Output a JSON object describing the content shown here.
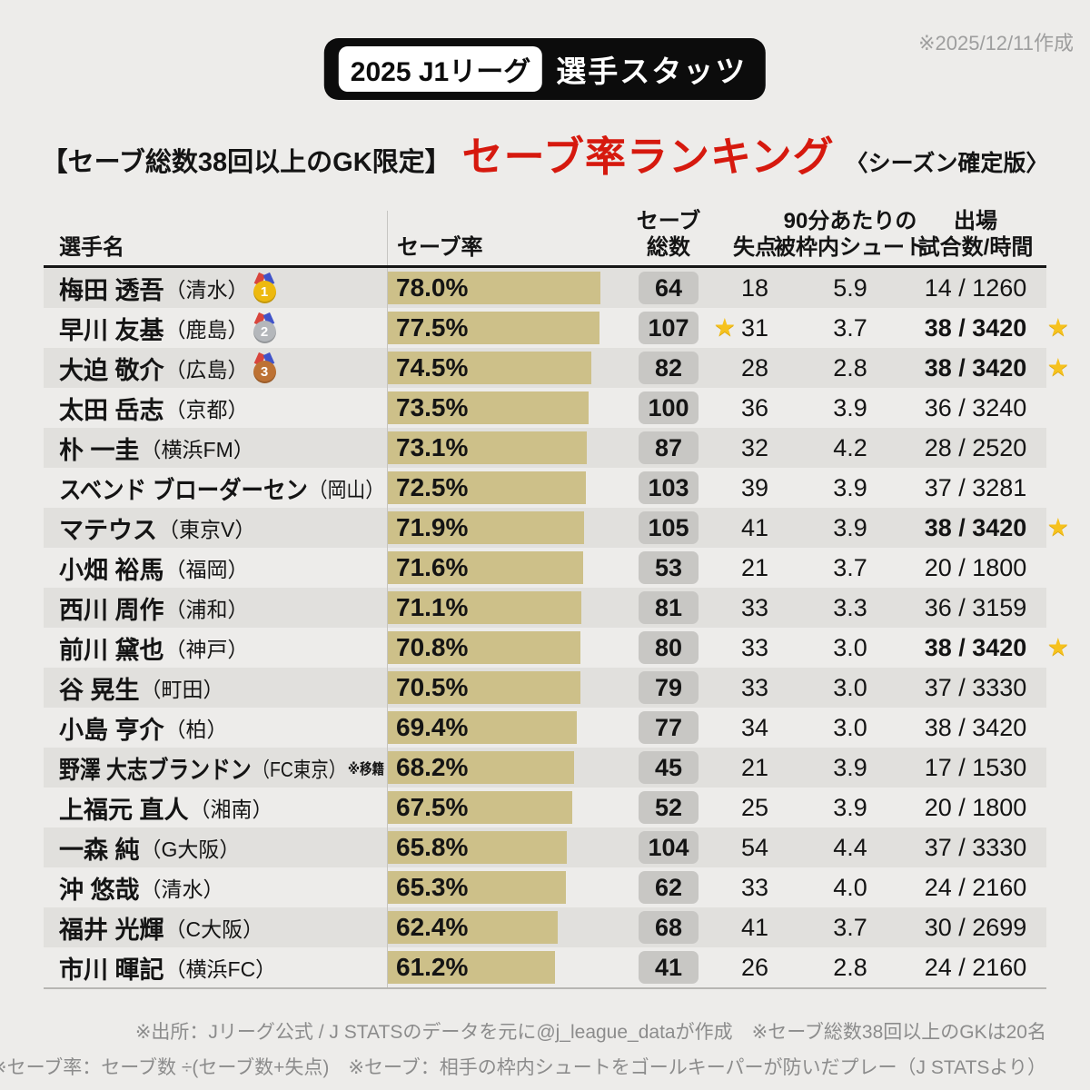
{
  "meta": {
    "created_note": "※2025/12/11作成"
  },
  "header": {
    "badge_league": "2025 J1リーグ",
    "badge_title": "選手スタッツ"
  },
  "subtitle": {
    "prefix": "【セーブ総数38回以上のGK限定】",
    "main": "セーブ率ランキング",
    "suffix": "〈シーズン確定版〉"
  },
  "colors": {
    "background": "#edecea",
    "row_alt": "#e1e0dd",
    "bar": "#cdc089",
    "saves_box": "#c8c7c4",
    "title_red": "#d6190e",
    "badge_black": "#0c0c0c",
    "footnote_gray": "#8c8c8c",
    "star_gold": "#f6c21e"
  },
  "icons": {
    "star": "★"
  },
  "medals": {
    "gold": "1",
    "silver": "2",
    "bronze": "3"
  },
  "table": {
    "headers": {
      "name": "選手名",
      "rate": "セーブ率",
      "saves_l1": "セーブ",
      "saves_l2": "総数",
      "conceded": "失点",
      "shots_l1": "90分あたりの",
      "shots_l2": "被枠内シュート",
      "apps_l1": "出場",
      "apps_l2": "試合数/時間"
    },
    "rows": [
      {
        "name": "梅田 透吾",
        "club": "（清水）",
        "medal": "gold",
        "note": "",
        "save_pct": 78.0,
        "save_pct_label": "78.0%",
        "saves": "64",
        "saves_star": false,
        "conceded": "18",
        "shots_per90": "5.9",
        "apps": "14 / 1260",
        "apps_bold": false,
        "apps_star": false
      },
      {
        "name": "早川 友基",
        "club": "（鹿島）",
        "medal": "silver",
        "note": "",
        "save_pct": 77.5,
        "save_pct_label": "77.5%",
        "saves": "107",
        "saves_star": true,
        "conceded": "31",
        "shots_per90": "3.7",
        "apps": "38 / 3420",
        "apps_bold": true,
        "apps_star": true
      },
      {
        "name": "大迫 敬介",
        "club": "（広島）",
        "medal": "bronze",
        "note": "",
        "save_pct": 74.5,
        "save_pct_label": "74.5%",
        "saves": "82",
        "saves_star": false,
        "conceded": "28",
        "shots_per90": "2.8",
        "apps": "38 / 3420",
        "apps_bold": true,
        "apps_star": true
      },
      {
        "name": "太田 岳志",
        "club": "（京都）",
        "medal": null,
        "note": "",
        "save_pct": 73.5,
        "save_pct_label": "73.5%",
        "saves": "100",
        "saves_star": false,
        "conceded": "36",
        "shots_per90": "3.9",
        "apps": "36 / 3240",
        "apps_bold": false,
        "apps_star": false
      },
      {
        "name": "朴 一圭",
        "club": "（横浜FM）",
        "medal": null,
        "note": "",
        "save_pct": 73.1,
        "save_pct_label": "73.1%",
        "saves": "87",
        "saves_star": false,
        "conceded": "32",
        "shots_per90": "4.2",
        "apps": "28 / 2520",
        "apps_bold": false,
        "apps_star": false
      },
      {
        "name": "スベンド ブローダーセン",
        "club": "（岡山）",
        "medal": null,
        "note": "",
        "save_pct": 72.5,
        "save_pct_label": "72.5%",
        "saves": "103",
        "saves_star": false,
        "conceded": "39",
        "shots_per90": "3.9",
        "apps": "37 / 3281",
        "apps_bold": false,
        "apps_star": false
      },
      {
        "name": "マテウス",
        "club": "（東京V）",
        "medal": null,
        "note": "",
        "save_pct": 71.9,
        "save_pct_label": "71.9%",
        "saves": "105",
        "saves_star": false,
        "conceded": "41",
        "shots_per90": "3.9",
        "apps": "38 / 3420",
        "apps_bold": true,
        "apps_star": true
      },
      {
        "name": "小畑 裕馬",
        "club": "（福岡）",
        "medal": null,
        "note": "",
        "save_pct": 71.6,
        "save_pct_label": "71.6%",
        "saves": "53",
        "saves_star": false,
        "conceded": "21",
        "shots_per90": "3.7",
        "apps": "20 / 1800",
        "apps_bold": false,
        "apps_star": false
      },
      {
        "name": "西川 周作",
        "club": "（浦和）",
        "medal": null,
        "note": "",
        "save_pct": 71.1,
        "save_pct_label": "71.1%",
        "saves": "81",
        "saves_star": false,
        "conceded": "33",
        "shots_per90": "3.3",
        "apps": "36 / 3159",
        "apps_bold": false,
        "apps_star": false
      },
      {
        "name": "前川 黛也",
        "club": "（神戸）",
        "medal": null,
        "note": "",
        "save_pct": 70.8,
        "save_pct_label": "70.8%",
        "saves": "80",
        "saves_star": false,
        "conceded": "33",
        "shots_per90": "3.0",
        "apps": "38 / 3420",
        "apps_bold": true,
        "apps_star": true
      },
      {
        "name": "谷 晃生",
        "club": "（町田）",
        "medal": null,
        "note": "",
        "save_pct": 70.5,
        "save_pct_label": "70.5%",
        "saves": "79",
        "saves_star": false,
        "conceded": "33",
        "shots_per90": "3.0",
        "apps": "37 / 3330",
        "apps_bold": false,
        "apps_star": false
      },
      {
        "name": "小島 亨介",
        "club": "（柏）",
        "medal": null,
        "note": "",
        "save_pct": 69.4,
        "save_pct_label": "69.4%",
        "saves": "77",
        "saves_star": false,
        "conceded": "34",
        "shots_per90": "3.0",
        "apps": "38 / 3420",
        "apps_bold": false,
        "apps_star": false
      },
      {
        "name": "野澤 大志ブランドン",
        "club": "（FC東京）",
        "medal": null,
        "note": "※移籍",
        "save_pct": 68.2,
        "save_pct_label": "68.2%",
        "saves": "45",
        "saves_star": false,
        "conceded": "21",
        "shots_per90": "3.9",
        "apps": "17 / 1530",
        "apps_bold": false,
        "apps_star": false
      },
      {
        "name": "上福元 直人",
        "club": "（湘南）",
        "medal": null,
        "note": "",
        "save_pct": 67.5,
        "save_pct_label": "67.5%",
        "saves": "52",
        "saves_star": false,
        "conceded": "25",
        "shots_per90": "3.9",
        "apps": "20 / 1800",
        "apps_bold": false,
        "apps_star": false
      },
      {
        "name": "一森 純",
        "club": "（G大阪）",
        "medal": null,
        "note": "",
        "save_pct": 65.8,
        "save_pct_label": "65.8%",
        "saves": "104",
        "saves_star": false,
        "conceded": "54",
        "shots_per90": "4.4",
        "apps": "37 / 3330",
        "apps_bold": false,
        "apps_star": false
      },
      {
        "name": "沖 悠哉",
        "club": "（清水）",
        "medal": null,
        "note": "",
        "save_pct": 65.3,
        "save_pct_label": "65.3%",
        "saves": "62",
        "saves_star": false,
        "conceded": "33",
        "shots_per90": "4.0",
        "apps": "24 / 2160",
        "apps_bold": false,
        "apps_star": false
      },
      {
        "name": "福井 光輝",
        "club": "（C大阪）",
        "medal": null,
        "note": "",
        "save_pct": 62.4,
        "save_pct_label": "62.4%",
        "saves": "68",
        "saves_star": false,
        "conceded": "41",
        "shots_per90": "3.7",
        "apps": "30 / 2699",
        "apps_bold": false,
        "apps_star": false
      },
      {
        "name": "市川 暉記",
        "club": "（横浜FC）",
        "medal": null,
        "note": "",
        "save_pct": 61.2,
        "save_pct_label": "61.2%",
        "saves": "41",
        "saves_star": false,
        "conceded": "26",
        "shots_per90": "2.8",
        "apps": "24 / 2160",
        "apps_bold": false,
        "apps_star": false
      }
    ]
  },
  "footnotes": {
    "line1": "※出所：Jリーグ公式 / J STATSのデータを元に@j_league_dataが作成　※セーブ総数38回以上のGKは20名",
    "line2": "※セーブ率：セーブ数 ÷(セーブ数+失点)　※セーブ：相手の枠内シュートをゴールキーパーが防いだプレー（J STATSより）"
  },
  "chart_data": {
    "type": "table",
    "title": "セーブ率ランキング",
    "subtitle": "【セーブ総数38回以上のGK限定】〈シーズン確定版〉",
    "bar_column": "セーブ率",
    "bar_note": "bar width proportional to save percentage (≈3px per %)",
    "columns": [
      "選手名",
      "セーブ率",
      "セーブ総数",
      "失点",
      "90分あたりの被枠内シュート",
      "出場試合数/時間"
    ],
    "categories": [
      "梅田 透吾（清水）",
      "早川 友基（鹿島）",
      "大迫 敬介（広島）",
      "太田 岳志（京都）",
      "朴 一圭（横浜FM）",
      "スベンド ブローダーセン（岡山）",
      "マテウス（東京V）",
      "小畑 裕馬（福岡）",
      "西川 周作（浦和）",
      "前川 黛也（神戸）",
      "谷 晃生（町田）",
      "小島 亨介（柏）",
      "野澤 大志ブランドン（FC東京）※移籍",
      "上福元 直人（湘南）",
      "一森 純（G大阪）",
      "沖 悠哉（清水）",
      "福井 光輝（C大阪）",
      "市川 暉記（横浜FC）"
    ],
    "series": [
      {
        "name": "セーブ率(%)",
        "values": [
          78.0,
          77.5,
          74.5,
          73.5,
          73.1,
          72.5,
          71.9,
          71.6,
          71.1,
          70.8,
          70.5,
          69.4,
          68.2,
          67.5,
          65.8,
          65.3,
          62.4,
          61.2
        ]
      },
      {
        "name": "セーブ総数",
        "values": [
          64,
          107,
          82,
          100,
          87,
          103,
          105,
          53,
          81,
          80,
          79,
          77,
          45,
          52,
          104,
          62,
          68,
          41
        ]
      },
      {
        "name": "失点",
        "values": [
          18,
          31,
          28,
          36,
          32,
          39,
          41,
          21,
          33,
          33,
          33,
          34,
          21,
          25,
          54,
          33,
          41,
          26
        ]
      },
      {
        "name": "90分あたりの被枠内シュート",
        "values": [
          5.9,
          3.7,
          2.8,
          3.9,
          4.2,
          3.9,
          3.9,
          3.7,
          3.3,
          3.0,
          3.0,
          3.0,
          3.9,
          3.9,
          4.4,
          4.0,
          3.7,
          2.8
        ]
      },
      {
        "name": "出場試合数",
        "values": [
          14,
          38,
          38,
          36,
          28,
          37,
          38,
          20,
          36,
          38,
          37,
          38,
          17,
          20,
          37,
          24,
          30,
          24
        ]
      },
      {
        "name": "出場時間",
        "values": [
          1260,
          3420,
          3420,
          3240,
          2520,
          3281,
          3420,
          1800,
          3159,
          3420,
          3330,
          3420,
          1530,
          1800,
          3330,
          2160,
          2699,
          2160
        ]
      }
    ]
  }
}
